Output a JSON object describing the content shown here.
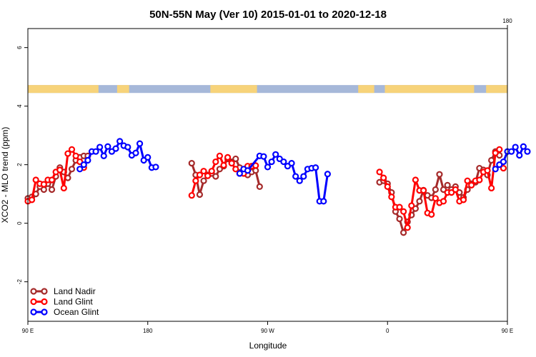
{
  "chart_data": {
    "type": "line",
    "title": "50N-55N May (Ver 10)   2015-01-01 to 2020-12-18",
    "xlabel": "Longitude",
    "ylabel": "XCO2 - MLO trend (ppm)",
    "xlim": [
      90,
      450
    ],
    "ylim": [
      -3.35,
      6.65
    ],
    "x_ticks": [
      {
        "value": 90,
        "label": "90 E"
      },
      {
        "value": 180,
        "label": "180"
      },
      {
        "value": 270,
        "label": "90 W"
      },
      {
        "value": 360,
        "label": "0"
      },
      {
        "value": 450,
        "label": "90 E"
      }
    ],
    "x_ticks_top": [
      {
        "value": 450,
        "label": "180"
      }
    ],
    "y_ticks": [
      {
        "value": -2,
        "label": "-2"
      },
      {
        "value": 0,
        "label": "0"
      },
      {
        "value": 2,
        "label": "2"
      },
      {
        "value": 4,
        "label": "4"
      },
      {
        "value": 6,
        "label": "6"
      }
    ],
    "grid": false,
    "legend_position": "bottom-left",
    "land_ocean_band": {
      "y_range": [
        4.45,
        4.72
      ],
      "land_color": "#f7d37a",
      "ocean_color": "#a6b8d9"
    },
    "series": [
      {
        "name": "Land Nadir",
        "color": "#a52a2a",
        "segments": [
          [
            [
              90,
              0.85
            ],
            [
              93,
              0.9
            ],
            [
              96,
              1.0
            ],
            [
              99,
              1.25
            ],
            [
              102,
              1.15
            ],
            [
              105,
              1.35
            ],
            [
              108,
              1.15
            ],
            [
              111,
              1.6
            ],
            [
              114,
              1.9
            ],
            [
              117,
              1.75
            ],
            [
              120,
              1.55
            ],
            [
              123,
              1.85
            ],
            [
              126,
              2.15
            ],
            [
              129,
              2.25
            ],
            [
              132,
              2.3
            ],
            [
              135,
              2.3
            ]
          ],
          [
            [
              213,
              2.05
            ],
            [
              216,
              1.65
            ],
            [
              219,
              0.98
            ],
            [
              222,
              1.45
            ],
            [
              225,
              1.65
            ],
            [
              228,
              1.7
            ],
            [
              231,
              1.6
            ],
            [
              234,
              1.85
            ],
            [
              237,
              1.95
            ],
            [
              240,
              2.2
            ],
            [
              243,
              2.1
            ],
            [
              246,
              2.2
            ],
            [
              249,
              1.9
            ],
            [
              252,
              1.75
            ],
            [
              255,
              1.65
            ],
            [
              258,
              1.75
            ],
            [
              261,
              1.8
            ],
            [
              264,
              1.25
            ]
          ],
          [
            [
              354,
              1.4
            ],
            [
              357,
              1.45
            ],
            [
              360,
              1.35
            ],
            [
              363,
              1.05
            ],
            [
              366,
              0.4
            ],
            [
              369,
              0.15
            ],
            [
              372,
              -0.32
            ],
            [
              375,
              0.05
            ],
            [
              378,
              0.28
            ],
            [
              381,
              0.5
            ],
            [
              384,
              0.75
            ],
            [
              387,
              1.13
            ],
            [
              390,
              0.95
            ],
            [
              393,
              0.87
            ],
            [
              396,
              1.15
            ],
            [
              399,
              1.67
            ],
            [
              402,
              1.15
            ],
            [
              405,
              1.3
            ],
            [
              408,
              1.15
            ],
            [
              411,
              1.25
            ],
            [
              414,
              1.05
            ],
            [
              417,
              0.88
            ],
            [
              420,
              1.15
            ],
            [
              423,
              1.35
            ],
            [
              426,
              1.4
            ],
            [
              429,
              1.88
            ],
            [
              432,
              1.82
            ],
            [
              435,
              1.65
            ],
            [
              438,
              2.15
            ],
            [
              441,
              2.45
            ],
            [
              444,
              2.32
            ]
          ]
        ]
      },
      {
        "name": "Land Glint",
        "color": "#ff0000",
        "segments": [
          [
            [
              90,
              0.75
            ],
            [
              93,
              0.8
            ],
            [
              96,
              1.48
            ],
            [
              99,
              1.35
            ],
            [
              102,
              1.33
            ],
            [
              105,
              1.48
            ],
            [
              108,
              1.48
            ],
            [
              111,
              1.75
            ],
            [
              114,
              1.82
            ],
            [
              117,
              1.2
            ],
            [
              120,
              2.38
            ],
            [
              123,
              2.52
            ],
            [
              126,
              2.3
            ],
            [
              129,
              2.1
            ],
            [
              132,
              1.9
            ]
          ],
          [
            [
              213,
              0.95
            ],
            [
              216,
              1.45
            ],
            [
              219,
              1.65
            ],
            [
              222,
              1.78
            ],
            [
              225,
              1.62
            ],
            [
              228,
              1.78
            ],
            [
              231,
              2.1
            ],
            [
              234,
              2.3
            ],
            [
              237,
              1.98
            ],
            [
              240,
              2.25
            ],
            [
              243,
              2.05
            ],
            [
              246,
              1.85
            ],
            [
              249,
              1.7
            ],
            [
              252,
              1.7
            ],
            [
              255,
              1.95
            ],
            [
              258,
              1.95
            ],
            [
              261,
              1.97
            ]
          ],
          [
            [
              354,
              1.75
            ],
            [
              357,
              1.55
            ],
            [
              360,
              1.25
            ],
            [
              363,
              0.9
            ],
            [
              366,
              0.55
            ],
            [
              369,
              0.55
            ],
            [
              372,
              0.4
            ],
            [
              375,
              -0.15
            ],
            [
              378,
              0.6
            ],
            [
              381,
              1.48
            ],
            [
              384,
              1.12
            ],
            [
              387,
              1.12
            ],
            [
              390,
              0.35
            ],
            [
              393,
              0.3
            ],
            [
              396,
              0.85
            ],
            [
              399,
              0.7
            ],
            [
              402,
              0.75
            ],
            [
              405,
              1.05
            ],
            [
              408,
              1.05
            ],
            [
              411,
              1.15
            ],
            [
              414,
              0.75
            ],
            [
              417,
              0.8
            ],
            [
              420,
              1.45
            ],
            [
              423,
              1.3
            ],
            [
              426,
              1.45
            ],
            [
              429,
              1.48
            ],
            [
              432,
              1.75
            ],
            [
              435,
              1.8
            ],
            [
              438,
              1.2
            ],
            [
              441,
              2.4
            ],
            [
              444,
              2.52
            ]
          ],
          [
            [
              447,
              1.88
            ]
          ]
        ]
      },
      {
        "name": "Ocean Glint",
        "color": "#0000ff",
        "segments": [
          [
            [
              129,
              1.85
            ],
            [
              132,
              2.0
            ],
            [
              135,
              2.15
            ],
            [
              138,
              2.45
            ],
            [
              141,
              2.45
            ],
            [
              144,
              2.6
            ],
            [
              147,
              2.3
            ],
            [
              150,
              2.62
            ],
            [
              153,
              2.45
            ],
            [
              156,
              2.55
            ],
            [
              159,
              2.8
            ],
            [
              162,
              2.65
            ],
            [
              165,
              2.6
            ],
            [
              168,
              2.32
            ],
            [
              171,
              2.4
            ],
            [
              174,
              2.72
            ],
            [
              177,
              2.15
            ],
            [
              180,
              2.25
            ],
            [
              183,
              1.9
            ],
            [
              186,
              1.92
            ]
          ],
          [
            [
              249,
              1.7
            ],
            [
              252,
              1.85
            ],
            [
              255,
              1.8
            ],
            [
              264,
              2.3
            ],
            [
              267,
              2.28
            ],
            [
              270,
              1.92
            ],
            [
              273,
              2.1
            ],
            [
              276,
              2.35
            ],
            [
              279,
              2.2
            ],
            [
              282,
              2.1
            ],
            [
              285,
              1.95
            ],
            [
              288,
              2.05
            ],
            [
              291,
              1.6
            ],
            [
              294,
              1.45
            ],
            [
              297,
              1.6
            ],
            [
              300,
              1.85
            ],
            [
              303,
              1.88
            ],
            [
              306,
              1.9
            ],
            [
              309,
              0.75
            ],
            [
              312,
              0.75
            ],
            [
              315,
              1.68
            ]
          ],
          [
            [
              441,
              1.85
            ],
            [
              444,
              2.0
            ],
            [
              447,
              2.1
            ],
            [
              450,
              2.45
            ],
            [
              453,
              2.45
            ],
            [
              456,
              2.6
            ],
            [
              459,
              2.32
            ],
            [
              462,
              2.62
            ],
            [
              465,
              2.45
            ]
          ]
        ]
      }
    ]
  }
}
